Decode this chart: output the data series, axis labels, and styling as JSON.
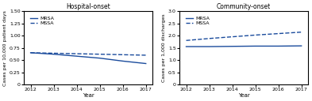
{
  "years": [
    2012,
    2013,
    2014,
    2015,
    2016,
    2017
  ],
  "hospital": {
    "title": "Hospital-onset",
    "ylabel": "Cases per 10,000 patient days",
    "ylim": [
      0,
      1.5
    ],
    "yticks": [
      0,
      0.25,
      0.5,
      0.75,
      1.0,
      1.25,
      1.5
    ],
    "yticklabels": [
      "0",
      "0.25",
      "0.50",
      "0.75",
      "1.00",
      "1.25",
      "1.50"
    ],
    "mrsa": [
      0.65,
      0.62,
      0.58,
      0.54,
      0.48,
      0.43
    ],
    "mssa": [
      0.65,
      0.64,
      0.63,
      0.62,
      0.61,
      0.6
    ]
  },
  "community": {
    "title": "Community-onset",
    "ylabel": "Cases per 1,000 discharges",
    "ylim": [
      0,
      3.0
    ],
    "yticks": [
      0,
      0.5,
      1.0,
      1.5,
      2.0,
      2.5,
      3.0
    ],
    "yticklabels": [
      "0",
      "0.5",
      "1.0",
      "1.5",
      "2.0",
      "2.5",
      "3.0"
    ],
    "mrsa": [
      1.55,
      1.55,
      1.56,
      1.57,
      1.57,
      1.58
    ],
    "mssa": [
      1.8,
      1.88,
      1.95,
      2.02,
      2.08,
      2.14
    ]
  },
  "line_color": "#1a4b9c",
  "xlabel": "Year",
  "legend_mrsa": "MRSA",
  "legend_mssa": "MSSA",
  "figsize": [
    3.93,
    1.28
  ],
  "dpi": 100
}
